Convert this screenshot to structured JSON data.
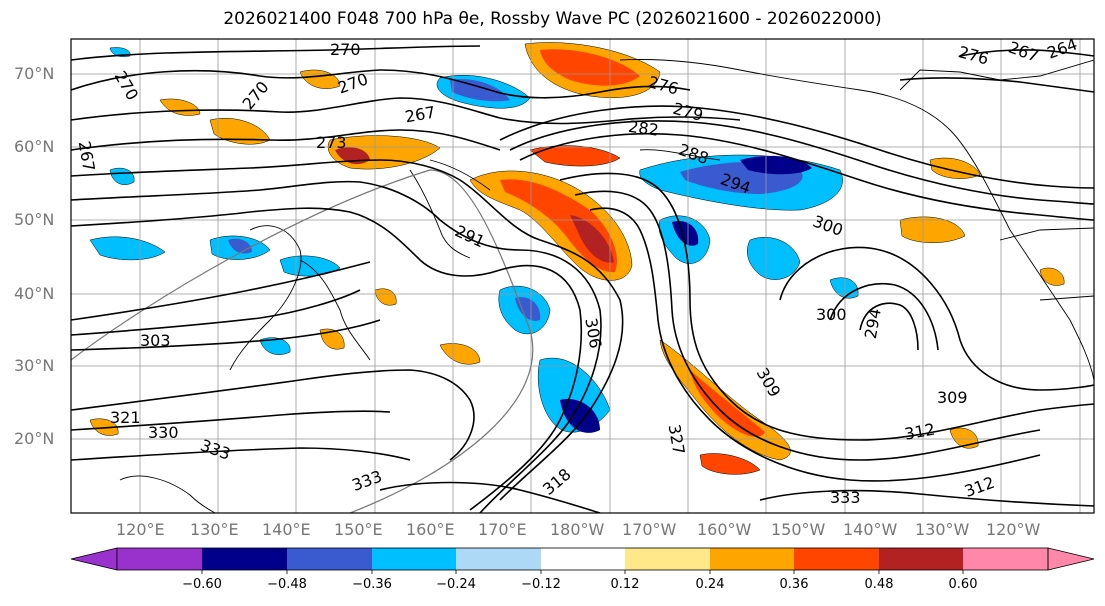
{
  "title": "2026021400 F048 700 hPa θe, Rossby Wave PC (2026021600 - 2026022000)",
  "map": {
    "lat_labels": [
      "70°N",
      "60°N",
      "50°N",
      "40°N",
      "30°N",
      "20°N"
    ],
    "lon_labels": [
      "120°E",
      "130°E",
      "140°E",
      "150°E",
      "160°E",
      "170°E",
      "180°W",
      "170°W",
      "160°W",
      "150°W",
      "140°W",
      "130°W",
      "120°W"
    ],
    "contour_labels": [
      "270",
      "270",
      "270",
      "267",
      "273",
      "267",
      "276",
      "279",
      "282",
      "288",
      "294",
      "300",
      "291",
      "306",
      "300",
      "294",
      "309",
      "309",
      "312",
      "327",
      "318",
      "303",
      "321",
      "330",
      "333",
      "333",
      "333",
      "264",
      "267",
      "270",
      "276",
      "312"
    ],
    "colors": {
      "contour": "#000000",
      "grid": "#999999",
      "coast": "#000000"
    }
  },
  "colorbar": {
    "ticks": [
      "−0.60",
      "−0.48",
      "−0.36",
      "−0.24",
      "−0.12",
      "0.12",
      "0.24",
      "0.36",
      "0.48",
      "0.60"
    ],
    "colors": [
      "#9932cc",
      "#00008b",
      "#3a5ad0",
      "#00bfff",
      "#add8f6",
      "#ffffff",
      "#ffe88a",
      "#ffa500",
      "#ff4500",
      "#b22222",
      "#ff88aa"
    ]
  }
}
